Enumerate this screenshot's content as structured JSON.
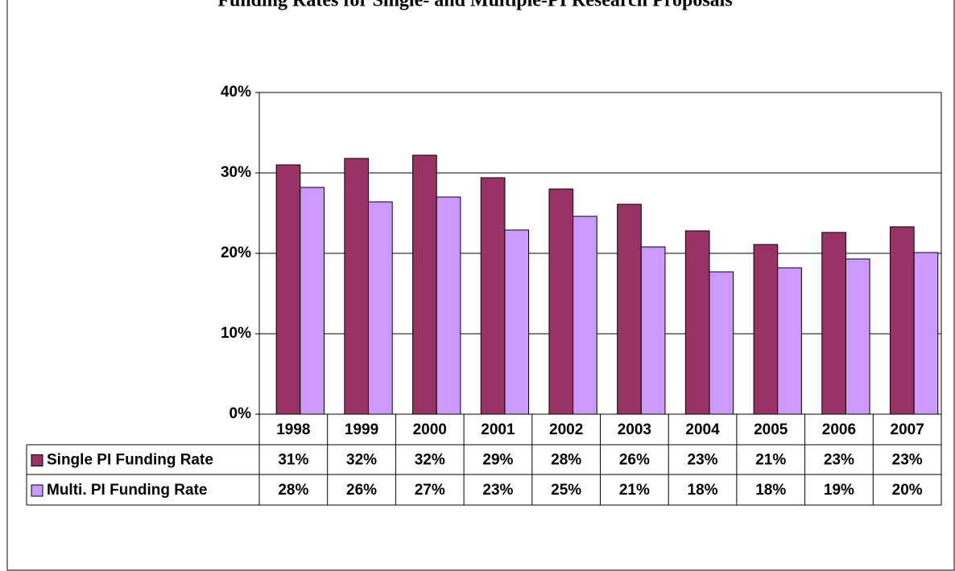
{
  "chart_data": {
    "type": "bar",
    "title": "Funding Rates for Single- and Multiple-PI Research Proposals",
    "categories": [
      "1998",
      "1999",
      "2000",
      "2001",
      "2002",
      "2003",
      "2004",
      "2005",
      "2006",
      "2007"
    ],
    "series": [
      {
        "name": "Single PI Funding Rate",
        "color": "#993366",
        "values": [
          31.0,
          31.8,
          32.2,
          29.4,
          28.0,
          26.1,
          22.8,
          21.1,
          22.6,
          23.3
        ],
        "value_labels": [
          "31%",
          "32%",
          "32%",
          "29%",
          "28%",
          "26%",
          "23%",
          "21%",
          "23%",
          "23%"
        ]
      },
      {
        "name": "Multi. PI Funding Rate",
        "color": "#CC99FF",
        "values": [
          28.2,
          26.4,
          27.0,
          22.9,
          24.6,
          20.8,
          17.7,
          18.2,
          19.3,
          20.1
        ],
        "value_labels": [
          "28%",
          "26%",
          "27%",
          "23%",
          "25%",
          "21%",
          "18%",
          "18%",
          "19%",
          "20%"
        ]
      }
    ],
    "ylim": [
      0,
      40
    ],
    "yticks": [
      {
        "value": 0,
        "label": "0%"
      },
      {
        "value": 10,
        "label": "10%"
      },
      {
        "value": 20,
        "label": "20%"
      },
      {
        "value": 30,
        "label": "30%"
      },
      {
        "value": 40,
        "label": "40%"
      }
    ],
    "grid": true,
    "data_table": true
  }
}
